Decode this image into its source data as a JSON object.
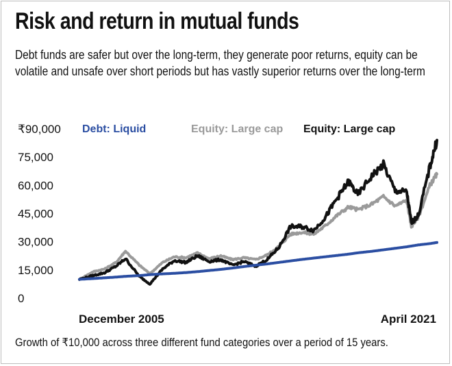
{
  "title": "Risk and return in mutual funds",
  "subtitle": "Debt funds are safer but over the long-term, they generate poor returns, equity can be volatile and unsafe over short periods but has vastly superior returns over the long-term",
  "caption": "Growth of ₹10,000 across three different fund categories over a period of 15 years.",
  "chart_data": {
    "type": "line",
    "x_start_label": "December 2005",
    "x_end_label": "April 2021",
    "x": [
      2005.92,
      2006.5,
      2007,
      2007.5,
      2007.9,
      2008.5,
      2008.95,
      2009.5,
      2010,
      2010.5,
      2011,
      2011.5,
      2012,
      2012.5,
      2013,
      2013.5,
      2014,
      2014.5,
      2015,
      2015.5,
      2016,
      2016.5,
      2017,
      2017.5,
      2017.9,
      2018.5,
      2019,
      2019.5,
      2020,
      2020.2,
      2020.5,
      2021,
      2021.3
    ],
    "ylim": [
      0,
      90000
    ],
    "yticks": [
      0,
      15000,
      30000,
      45000,
      60000,
      75000,
      90000
    ],
    "ytick_labels": [
      "0",
      "15,000",
      "30,000",
      "45,000",
      "60,000",
      "75,000",
      "₹90,000"
    ],
    "series": [
      {
        "name": "Debt: Liquid",
        "color": "#2b4ea2",
        "values": [
          10000,
          10400,
          10800,
          11200,
          11600,
          12000,
          12500,
          12900,
          13200,
          13600,
          14100,
          14700,
          15300,
          16000,
          16800,
          17500,
          18200,
          19000,
          19800,
          20600,
          21300,
          22000,
          22700,
          23400,
          24100,
          24900,
          25700,
          26500,
          27300,
          27700,
          28300,
          29000,
          29600
        ]
      },
      {
        "name": "Equity: Large cap",
        "color": "#9a9a9a",
        "values": [
          10000,
          14000,
          15500,
          19000,
          25000,
          17500,
          13000,
          19000,
          22000,
          21500,
          24000,
          21000,
          22500,
          20500,
          21500,
          20500,
          23000,
          27500,
          34000,
          35000,
          34000,
          38500,
          44000,
          48500,
          47000,
          50000,
          54000,
          49000,
          52000,
          38000,
          43000,
          60000,
          66000
        ]
      },
      {
        "name": "Equity: Large cap",
        "color": "#111111",
        "values": [
          10000,
          12000,
          13500,
          17000,
          21000,
          11500,
          7500,
          15500,
          20000,
          19000,
          22500,
          19500,
          20500,
          17500,
          19500,
          17000,
          20500,
          27000,
          38000,
          38000,
          36000,
          43000,
          53000,
          62000,
          55000,
          65000,
          71000,
          57000,
          56500,
          40000,
          44000,
          70000,
          84000
        ]
      }
    ]
  }
}
